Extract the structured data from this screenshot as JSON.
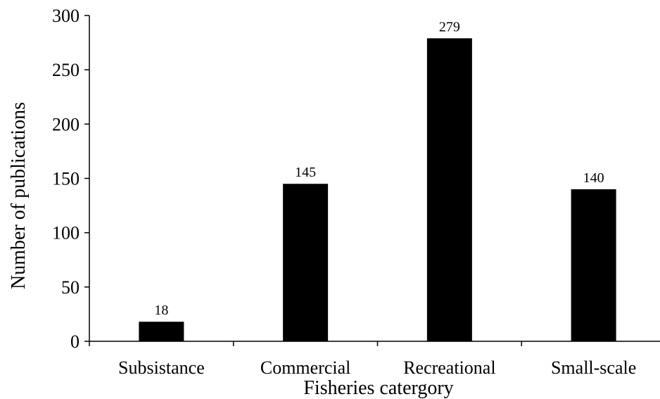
{
  "chart_data": {
    "type": "bar",
    "categories": [
      "Subsistance",
      "Commercial",
      "Recreational",
      "Small-scale"
    ],
    "values": [
      18,
      145,
      279,
      140
    ],
    "data_labels": [
      "18",
      "145",
      "279",
      "140"
    ],
    "xlabel": "Fisheries catergory",
    "ylabel": "Number of publications",
    "ylim": [
      0,
      300
    ],
    "yticks": [
      0,
      50,
      100,
      150,
      200,
      250,
      300
    ],
    "grid": false,
    "legend": "none",
    "bar_color": "#000000"
  }
}
